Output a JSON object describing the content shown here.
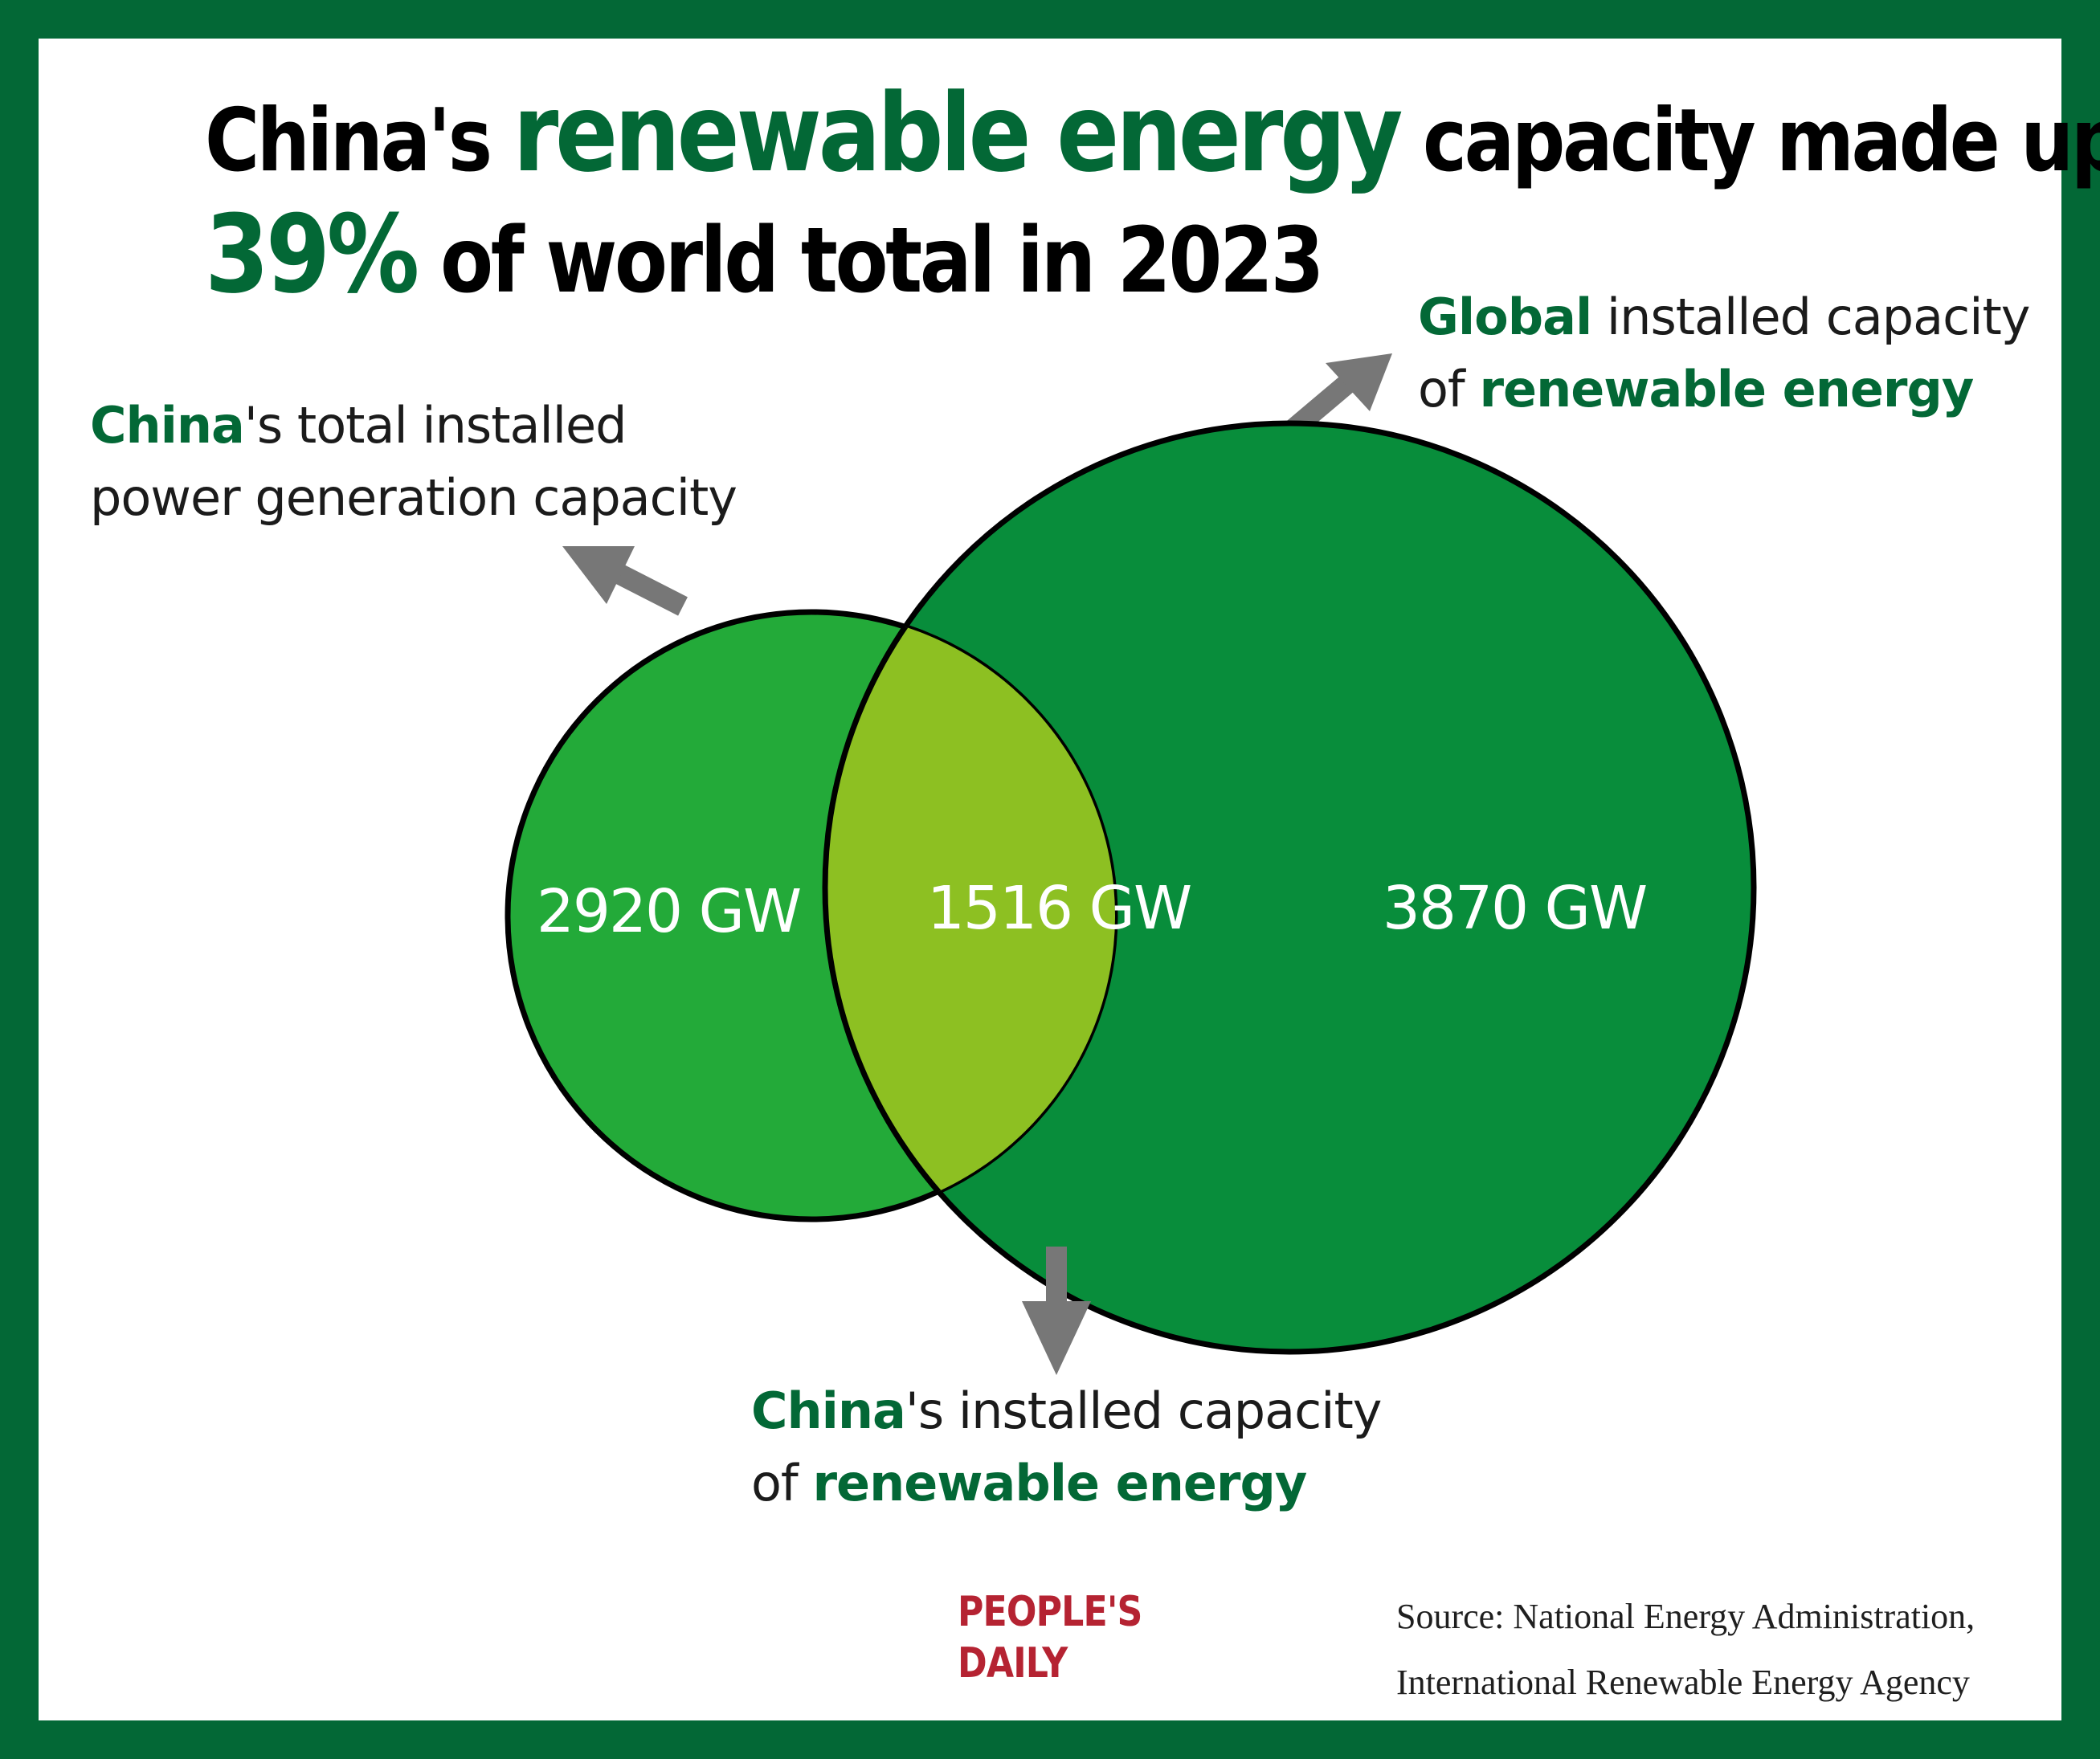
{
  "title": {
    "l1_a": "China's ",
    "l1_b": "renewable energy",
    "l1_c": " capacity made up",
    "l2_a": "39%",
    "l2_b": " of world total in 2023"
  },
  "labels": {
    "china_total": {
      "hl": "China",
      "rest1": "'s total installed",
      "line2": "power generation capacity"
    },
    "global": {
      "hl": "Global",
      "rest1": " installed capacity",
      "line2_pre": "of ",
      "line2_hl": "renewable energy"
    },
    "china_renew": {
      "hl": "China",
      "rest1": "'s installed capacity",
      "line2_pre": "of ",
      "line2_hl": "renewable energy"
    }
  },
  "values": {
    "china_only": "2920 GW",
    "overlap": "1516 GW",
    "global_only": "3870 GW"
  },
  "colors": {
    "border": "#036836",
    "china_circle": "#23aa39",
    "global_circle": "#088d3b",
    "overlap": "#8dc022",
    "arrow": "#777777",
    "highlight_text": "#036836",
    "logo": "#b52332"
  },
  "logo": {
    "line1": "PEOPLE'S",
    "line2": "DAILY"
  },
  "source": {
    "line1": "Source: National Energy Administration,",
    "line2": "International Renewable Energy Agency"
  }
}
